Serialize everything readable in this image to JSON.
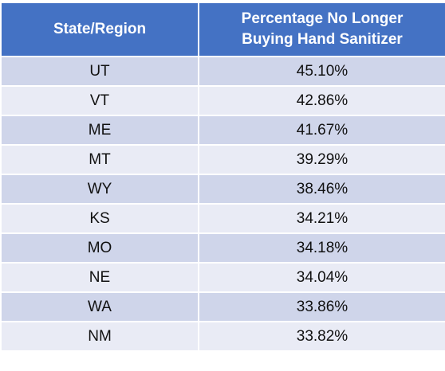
{
  "table": {
    "header": [
      "State/Region",
      "Percentage No Longer Buying Hand Sanitizer"
    ],
    "rows": [
      [
        "UT",
        "45.10%"
      ],
      [
        "VT",
        "42.86%"
      ],
      [
        "ME",
        "41.67%"
      ],
      [
        "MT",
        "39.29%"
      ],
      [
        "WY",
        "38.46%"
      ],
      [
        "KS",
        "34.21%"
      ],
      [
        "MO",
        "34.18%"
      ],
      [
        "NE",
        "34.04%"
      ],
      [
        "WA",
        "33.86%"
      ],
      [
        "NM",
        "33.82%"
      ]
    ]
  }
}
